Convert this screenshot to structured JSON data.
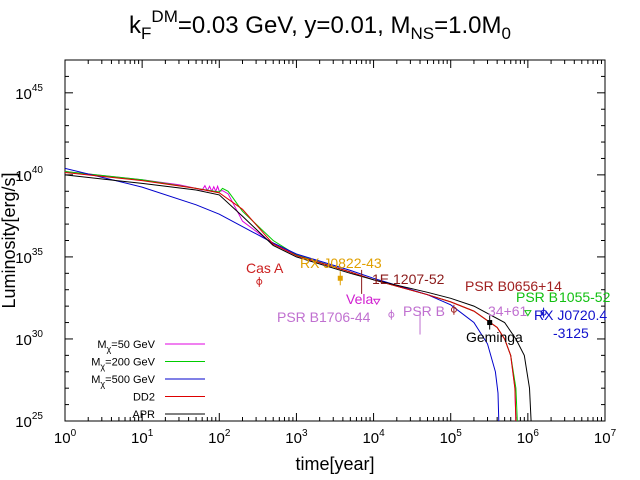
{
  "chart_data": {
    "type": "line",
    "title": {
      "parts": [
        {
          "text": "k"
        },
        {
          "text": "F",
          "sub": true
        },
        {
          "text": "DM",
          "sup": true
        },
        {
          "text": "=0.03 GeV, y=0.01, M"
        },
        {
          "text": "NS",
          "sub": true
        },
        {
          "text": "=1.0M"
        },
        {
          "text": "0",
          "sub": true
        }
      ]
    },
    "xlabel": "time[year]",
    "ylabel": "Luminosity[erg/s]",
    "x_scale": "log",
    "y_scale": "log",
    "xlim": [
      1,
      10000000
    ],
    "ylim": [
      1e+25,
      1e+47
    ],
    "x_ticks": [
      {
        "value": 1,
        "base": "10",
        "exp": "0"
      },
      {
        "value": 10,
        "base": "10",
        "exp": "1"
      },
      {
        "value": 100,
        "base": "10",
        "exp": "2"
      },
      {
        "value": 1000,
        "base": "10",
        "exp": "3"
      },
      {
        "value": 10000,
        "base": "10",
        "exp": "4"
      },
      {
        "value": 100000,
        "base": "10",
        "exp": "5"
      },
      {
        "value": 1000000,
        "base": "10",
        "exp": "6"
      },
      {
        "value": 10000000,
        "base": "10",
        "exp": "7"
      }
    ],
    "y_ticks": [
      {
        "value": 1e+25,
        "base": "10",
        "exp": "25"
      },
      {
        "value": 1e+30,
        "base": "10",
        "exp": "30"
      },
      {
        "value": 1e+35,
        "base": "10",
        "exp": "35"
      },
      {
        "value": 1e+40,
        "base": "10",
        "exp": "40"
      },
      {
        "value": 1e+45,
        "base": "10",
        "exp": "45"
      }
    ],
    "grid": false,
    "legend_position": "bottom-left",
    "series": [
      {
        "label_parts": [
          {
            "text": "M"
          },
          {
            "text": "χ",
            "sub": true
          },
          {
            "text": "=50 GeV"
          }
        ],
        "color": "#e000e0",
        "x": [
          1,
          10,
          30,
          50,
          60,
          65,
          70,
          75,
          80,
          85,
          90,
          95,
          100,
          110,
          130,
          200,
          500,
          1000,
          5000,
          10000,
          50000,
          100000,
          200000,
          400000,
          500000,
          600000,
          680000,
          700000
        ],
        "y": [
          1.6e+40,
          5e+39,
          2.5e+39,
          1.5e+39,
          1.2e+39,
          2.2e+39,
          1.1e+39,
          2e+39,
          1e+39,
          1.9e+39,
          1e+39,
          2e+39,
          1e+39,
          1.1e+39,
          7e+38,
          1.5e+37,
          6e+35,
          1.3e+35,
          1.2e+34,
          4e+33,
          5e+32,
          1.8e+32,
          5e+31,
          5e+30,
          1e+30,
          1e+29,
          1e+27,
          1e+25
        ]
      },
      {
        "label_parts": [
          {
            "text": "M"
          },
          {
            "text": "χ",
            "sub": true
          },
          {
            "text": "=200 GeV"
          }
        ],
        "color": "#00cc00",
        "x": [
          1,
          10,
          50,
          100,
          110,
          130,
          150,
          200,
          500,
          1000,
          5000,
          10000,
          50000,
          100000,
          200000,
          400000,
          500000,
          600000,
          700000,
          730000
        ],
        "y": [
          1.6e+40,
          5e+39,
          1.5e+39,
          9e+38,
          1.5e+39,
          1e+39,
          4e+38,
          6e+37,
          1e+36,
          1.3e+35,
          1.2e+34,
          4e+33,
          5e+32,
          1.8e+32,
          5e+31,
          5e+30,
          1e+30,
          1e+29,
          1e+27,
          1e+25
        ]
      },
      {
        "label_parts": [
          {
            "text": "M"
          },
          {
            "text": "χ",
            "sub": true
          },
          {
            "text": "=500 GeV"
          }
        ],
        "color": "#0000cc",
        "x": [
          1,
          10,
          50,
          100,
          500,
          1000,
          5000,
          10000,
          50000,
          100000,
          200000,
          300000,
          380000,
          410000,
          420000
        ],
        "y": [
          2.5e+40,
          1.8e+39,
          1.5e+38,
          4e+37,
          7e+35,
          1.5e+35,
          1.5e+34,
          5e+33,
          5e+32,
          1.2e+32,
          1e+31,
          5e+29,
          1e+28,
          5e+26,
          1e+25
        ]
      },
      {
        "label_parts": [
          {
            "text": "DD2"
          }
        ],
        "color": "#dd0000",
        "x": [
          1,
          10,
          50,
          100,
          200,
          500,
          1000,
          5000,
          10000,
          50000,
          100000,
          200000,
          400000,
          500000,
          600000,
          680000,
          700000
        ],
        "y": [
          1.4e+40,
          4.5e+39,
          1.5e+39,
          8e+38,
          8e+37,
          6e+35,
          1.2e+35,
          1.2e+34,
          4e+33,
          5e+32,
          1.8e+32,
          5e+31,
          5e+30,
          1e+30,
          1e+29,
          1e+27,
          1e+25
        ]
      },
      {
        "label_parts": [
          {
            "text": "APR"
          }
        ],
        "color": "#000000",
        "x": [
          1,
          10,
          50,
          100,
          200,
          500,
          1000,
          5000,
          10000,
          50000,
          100000,
          200000,
          500000,
          700000,
          900000,
          1050000,
          1100000
        ],
        "y": [
          1e+40,
          3e+39,
          1.2e+39,
          6e+38,
          3e+37,
          5e+35,
          1e+35,
          1e+34,
          4e+33,
          7e+32,
          3e+32,
          1e+32,
          1e+31,
          1e+30,
          1e+29,
          1e+27,
          1e+25
        ]
      }
    ],
    "observations": [
      {
        "name": "Cas A",
        "color": "#cc2020",
        "x": 330,
        "y": 3e+33,
        "marker": "circle"
      },
      {
        "name": "RX J0822-43",
        "color": "#e0a000",
        "x": 3700,
        "y": 5e+33,
        "marker": "square"
      },
      {
        "name": "1E 1207-52",
        "color": "#8b1a1a",
        "x": 7000,
        "y": 3e+33,
        "marker": "errorbar"
      },
      {
        "name": "PSR B0656+14",
        "color": "#a02020",
        "x": 110000,
        "y": 6e+31,
        "marker": "circle"
      },
      {
        "name": "Vela",
        "color": "#d020d0",
        "x": 11000,
        "y": 2e+32,
        "marker": "triangle"
      },
      {
        "name": "PSR B1055-52",
        "color": "#10c010",
        "x": 1000000,
        "y": 4e+31,
        "marker": "triangle"
      },
      {
        "name": "RX J0720.4-3125",
        "color": "#1010cc",
        "x": 1600000,
        "y": 4e+31,
        "marker": "circle"
      },
      {
        "name": "PSR B1706-44",
        "color": "#c070d0",
        "x": 17000,
        "y": 3e+31,
        "marker": "circle"
      },
      {
        "name": "PSR B2334+61",
        "color": "#c070d0",
        "x": 40000,
        "y": 1e+31,
        "marker": "errorbar"
      },
      {
        "name": "Geminga",
        "color": "#000000",
        "x": 320000,
        "y": 1e+31,
        "marker": "square"
      }
    ]
  },
  "text": {
    "label_rx0720_line1": "RX J0720.4",
    "label_rx0720_line2": "-3125",
    "label_1055_prefix": "PSR B",
    "label_1055_suffix": "1055-52",
    "label_2334_prefix": "PSR B",
    "label_2334_suffix": "34+61"
  }
}
